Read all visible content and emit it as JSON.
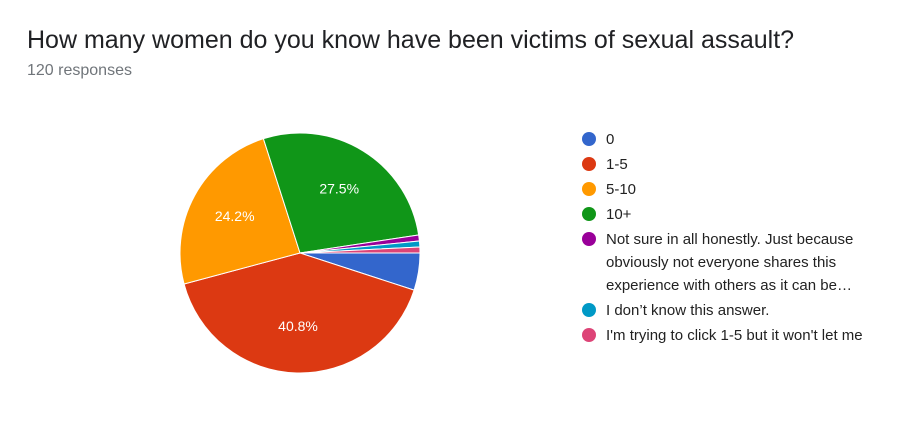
{
  "chart_data": {
    "type": "pie",
    "title": "How many women do you know have been victims of sexual assault?",
    "subtitle": "120 responses",
    "categories": [
      "0",
      "1-5",
      "5-10",
      "10+",
      "Not sure in all honestly. Just because obviously not everyone shares this experience with others as it can be…",
      "I don’t know this answer.",
      "I'm trying to click 1-5 but it won't let me"
    ],
    "values": [
      5,
      40.8,
      24.2,
      27.5,
      0.8,
      0.8,
      0.8
    ],
    "value_labels": [
      null,
      "40.8%",
      "24.2%",
      "27.5%",
      null,
      null,
      null
    ],
    "colors": [
      "#3366cc",
      "#dc3912",
      "#ff9900",
      "#109618",
      "#990099",
      "#0099c6",
      "#dd4477"
    ]
  }
}
